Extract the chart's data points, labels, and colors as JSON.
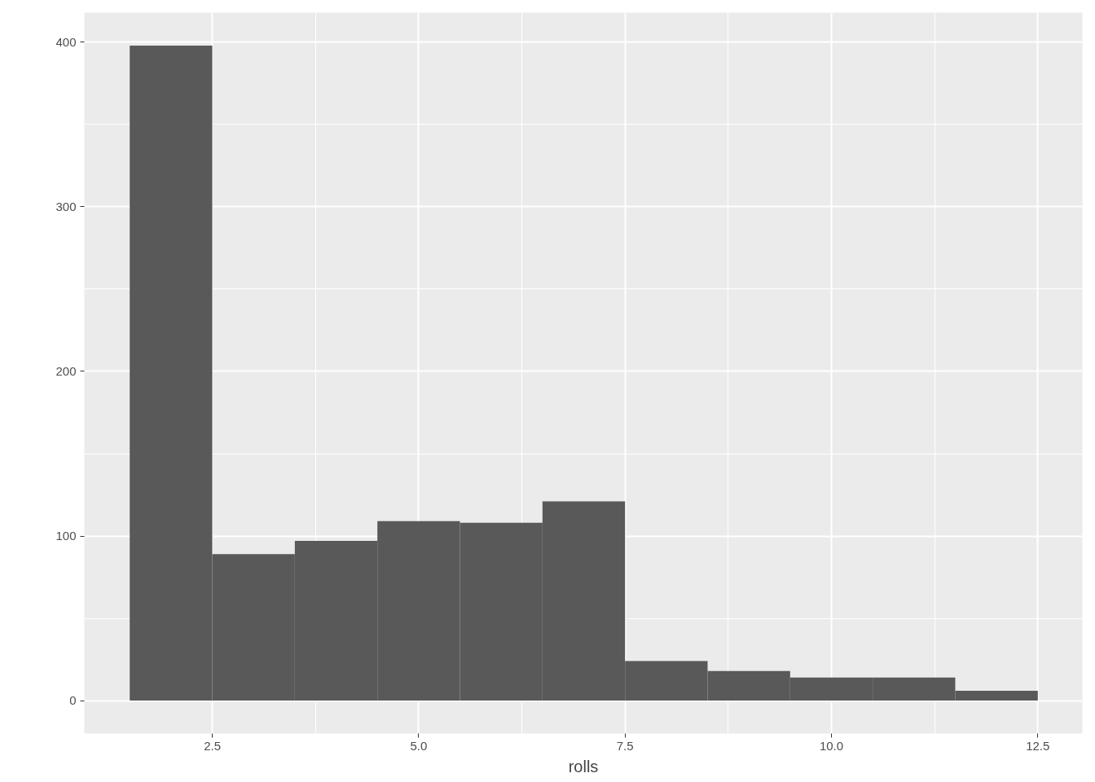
{
  "chart_data": {
    "type": "histogram",
    "xlabel": "rolls",
    "bins": [
      1.5,
      2.5,
      3.5,
      4.5,
      5.5,
      6.5,
      7.5,
      8.5,
      9.5,
      10.5,
      11.5,
      12.5
    ],
    "values": [
      398,
      89,
      97,
      109,
      108,
      121,
      24,
      18,
      14,
      14,
      6
    ],
    "color": "#595959",
    "xlim": [
      0.95,
      13.04
    ],
    "ylim": [
      -20,
      418
    ],
    "xticks": [
      {
        "value": 2.5,
        "label": "2.5"
      },
      {
        "value": 5,
        "label": "5.0"
      },
      {
        "value": 7.5,
        "label": "7.5"
      },
      {
        "value": 10,
        "label": "10.0"
      },
      {
        "value": 12.5,
        "label": "12.5"
      }
    ],
    "yticks": [
      0,
      100,
      200,
      300,
      400
    ],
    "grid": true
  }
}
